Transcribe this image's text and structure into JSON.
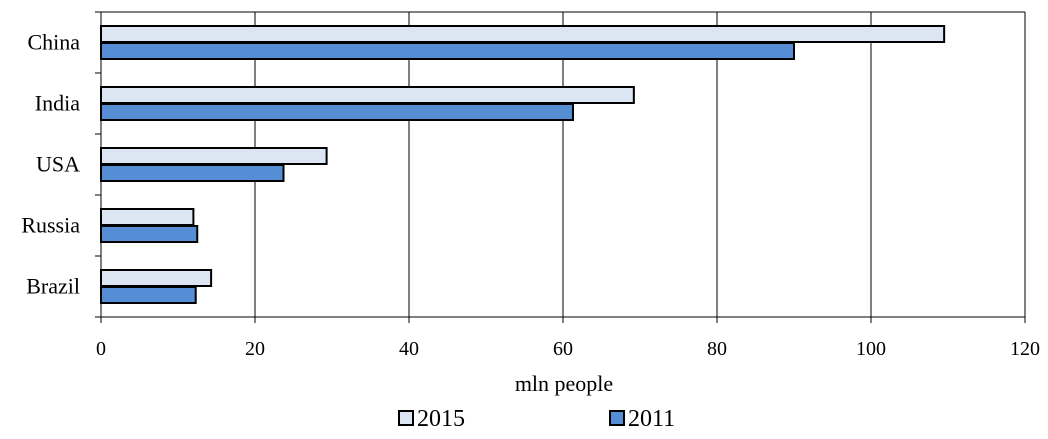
{
  "chart_data": {
    "type": "bar",
    "orientation": "horizontal",
    "categories": [
      "China",
      "India",
      "USA",
      "Russia",
      "Brazil"
    ],
    "series": [
      {
        "name": "2015",
        "values": [
          109.5,
          69.2,
          29.3,
          12.0,
          14.3
        ],
        "color": "#DCE6F2"
      },
      {
        "name": "2011",
        "values": [
          90.0,
          61.3,
          23.7,
          12.5,
          12.3
        ],
        "color": "#558ED5"
      }
    ],
    "xlabel": "mln people",
    "ylabel": "",
    "xlim": [
      0,
      120
    ],
    "xticks": [
      0,
      20,
      40,
      60,
      80,
      100,
      120
    ],
    "grid": "vertical",
    "legend": "bottom",
    "title": ""
  }
}
